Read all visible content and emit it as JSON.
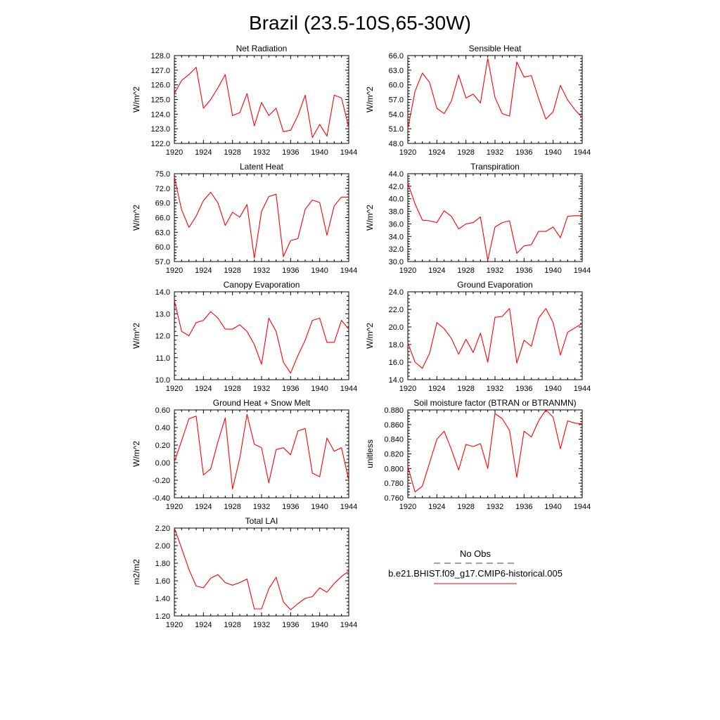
{
  "title": "Brazil (23.5-10S,65-30W)",
  "colors": {
    "model": "#ff0000",
    "obs": "#3b3b8f",
    "axis": "#000000"
  },
  "legend": {
    "obs_label": "No Obs",
    "model_label": "b.e21.BHIST.f09_g17.CMIP6-historical.005"
  },
  "chart_data": [
    {
      "type": "line",
      "title": "Net Radiation",
      "ylabel": "W/m^2",
      "ylim": [
        122.0,
        128.0
      ],
      "yticks": [
        "122.0",
        "123.0",
        "124.0",
        "125.0",
        "126.0",
        "127.0",
        "128.0"
      ],
      "xlim": [
        1920,
        1944
      ],
      "xticks": [
        "1920",
        "1924",
        "1928",
        "1932",
        "1936",
        "1940",
        "1944"
      ],
      "x": [
        1920,
        1921,
        1922,
        1923,
        1924,
        1925,
        1926,
        1927,
        1928,
        1929,
        1930,
        1931,
        1932,
        1933,
        1934,
        1935,
        1936,
        1937,
        1938,
        1939,
        1940,
        1941,
        1942,
        1943,
        1944
      ],
      "series": [
        {
          "values": [
            125.4,
            126.3,
            126.7,
            127.2,
            124.4,
            125.0,
            125.8,
            126.7,
            123.9,
            124.1,
            125.4,
            123.2,
            124.8,
            123.9,
            124.4,
            122.8,
            122.9,
            123.9,
            125.3,
            122.4,
            123.3,
            122.5,
            125.3,
            125.1,
            123.1
          ]
        }
      ]
    },
    {
      "type": "line",
      "title": "Sensible Heat",
      "ylabel": "W/m^2",
      "ylim": [
        48.0,
        66.0
      ],
      "yticks": [
        "48.0",
        "51.0",
        "54.0",
        "57.0",
        "60.0",
        "63.0",
        "66.0"
      ],
      "xlim": [
        1920,
        1944
      ],
      "xticks": [
        "1920",
        "1924",
        "1928",
        "1932",
        "1936",
        "1940",
        "1944"
      ],
      "x": [
        1920,
        1921,
        1922,
        1923,
        1924,
        1925,
        1926,
        1927,
        1928,
        1929,
        1930,
        1931,
        1932,
        1933,
        1934,
        1935,
        1936,
        1937,
        1938,
        1939,
        1940,
        1941,
        1942,
        1943,
        1944
      ],
      "series": [
        {
          "values": [
            51.0,
            58.7,
            62.4,
            60.5,
            55.2,
            54.1,
            56.7,
            62.0,
            57.3,
            58.1,
            56.3,
            65.4,
            57.4,
            54.1,
            53.6,
            64.7,
            61.6,
            61.9,
            57.2,
            53.0,
            54.5,
            59.9,
            56.9,
            54.9,
            53.3
          ]
        }
      ]
    },
    {
      "type": "line",
      "title": "Latent Heat",
      "ylabel": "W/m^2",
      "ylim": [
        57.0,
        75.0
      ],
      "yticks": [
        "57.0",
        "60.0",
        "63.0",
        "66.0",
        "69.0",
        "72.0",
        "75.0"
      ],
      "xlim": [
        1920,
        1944
      ],
      "xticks": [
        "1920",
        "1924",
        "1928",
        "1932",
        "1936",
        "1940",
        "1944"
      ],
      "x": [
        1920,
        1921,
        1922,
        1923,
        1924,
        1925,
        1926,
        1927,
        1928,
        1929,
        1930,
        1931,
        1932,
        1933,
        1934,
        1935,
        1936,
        1937,
        1938,
        1939,
        1940,
        1941,
        1942,
        1943,
        1944
      ],
      "series": [
        {
          "values": [
            74.3,
            67.6,
            64.0,
            66.3,
            69.5,
            71.2,
            69.0,
            64.4,
            67.1,
            66.1,
            68.7,
            57.7,
            67.3,
            70.3,
            70.8,
            58.0,
            61.3,
            61.7,
            67.7,
            69.6,
            69.1,
            62.4,
            68.4,
            70.2,
            70.2
          ]
        }
      ]
    },
    {
      "type": "line",
      "title": "Transpiration",
      "ylabel": "W/m^2",
      "ylim": [
        30.0,
        44.0
      ],
      "yticks": [
        "30.0",
        "32.0",
        "34.0",
        "36.0",
        "38.0",
        "40.0",
        "42.0",
        "44.0"
      ],
      "xlim": [
        1920,
        1944
      ],
      "xticks": [
        "1920",
        "1924",
        "1928",
        "1932",
        "1936",
        "1940",
        "1944"
      ],
      "x": [
        1920,
        1921,
        1922,
        1923,
        1924,
        1925,
        1926,
        1927,
        1928,
        1929,
        1930,
        1931,
        1932,
        1933,
        1934,
        1935,
        1936,
        1937,
        1938,
        1939,
        1940,
        1941,
        1942,
        1943,
        1944
      ],
      "series": [
        {
          "values": [
            42.5,
            39.2,
            36.6,
            36.5,
            36.2,
            38.1,
            37.2,
            35.2,
            36.0,
            36.2,
            37.1,
            30.2,
            35.5,
            36.2,
            36.5,
            31.3,
            32.5,
            32.7,
            34.8,
            34.8,
            35.5,
            33.8,
            37.2,
            37.3,
            37.3
          ]
        }
      ]
    },
    {
      "type": "line",
      "title": "Canopy Evaporation",
      "ylabel": "W/m^2",
      "ylim": [
        10.0,
        14.0
      ],
      "yticks": [
        "10.0",
        "11.0",
        "12.0",
        "13.0",
        "14.0"
      ],
      "xlim": [
        1920,
        1944
      ],
      "xticks": [
        "1920",
        "1924",
        "1928",
        "1932",
        "1936",
        "1940",
        "1944"
      ],
      "x": [
        1920,
        1921,
        1922,
        1923,
        1924,
        1925,
        1926,
        1927,
        1928,
        1929,
        1930,
        1931,
        1932,
        1933,
        1934,
        1935,
        1936,
        1937,
        1938,
        1939,
        1940,
        1941,
        1942,
        1943,
        1944
      ],
      "series": [
        {
          "values": [
            13.6,
            12.2,
            12.0,
            12.6,
            12.7,
            13.1,
            12.8,
            12.3,
            12.3,
            12.5,
            12.2,
            11.6,
            10.7,
            12.8,
            12.2,
            10.8,
            10.3,
            11.1,
            11.8,
            12.7,
            12.8,
            11.7,
            11.7,
            12.7,
            12.3
          ]
        }
      ]
    },
    {
      "type": "line",
      "title": "Ground Evaporation",
      "ylabel": "W/m^2",
      "ylim": [
        14.0,
        24.0
      ],
      "yticks": [
        "14.0",
        "16.0",
        "18.0",
        "20.0",
        "22.0",
        "24.0"
      ],
      "xlim": [
        1920,
        1944
      ],
      "xticks": [
        "1920",
        "1924",
        "1928",
        "1932",
        "1936",
        "1940",
        "1944"
      ],
      "x": [
        1920,
        1921,
        1922,
        1923,
        1924,
        1925,
        1926,
        1927,
        1928,
        1929,
        1930,
        1931,
        1932,
        1933,
        1934,
        1935,
        1936,
        1937,
        1938,
        1939,
        1940,
        1941,
        1942,
        1943,
        1944
      ],
      "series": [
        {
          "values": [
            18.2,
            16.0,
            15.3,
            17.0,
            20.5,
            19.8,
            18.7,
            16.9,
            18.6,
            17.1,
            19.3,
            16.0,
            21.1,
            21.2,
            22.1,
            15.9,
            18.5,
            17.8,
            21.0,
            22.1,
            20.5,
            16.8,
            19.4,
            19.9,
            20.4
          ]
        }
      ]
    },
    {
      "type": "line",
      "title": "Ground Heat + Snow Melt",
      "ylabel": "W/m^2",
      "ylim": [
        -0.4,
        0.6
      ],
      "yticks": [
        "-0.40",
        "-0.20",
        "0.00",
        "0.20",
        "0.40",
        "0.60"
      ],
      "xlim": [
        1920,
        1944
      ],
      "xticks": [
        "1920",
        "1924",
        "1928",
        "1932",
        "1936",
        "1940",
        "1944"
      ],
      "x": [
        1920,
        1921,
        1922,
        1923,
        1924,
        1925,
        1926,
        1927,
        1928,
        1929,
        1930,
        1931,
        1932,
        1933,
        1934,
        1935,
        1936,
        1937,
        1938,
        1939,
        1940,
        1941,
        1942,
        1943,
        1944
      ],
      "series": [
        {
          "values": [
            0.01,
            0.25,
            0.5,
            0.53,
            -0.14,
            -0.07,
            0.24,
            0.51,
            -0.3,
            0.05,
            0.55,
            0.21,
            0.17,
            -0.23,
            0.15,
            0.17,
            0.09,
            0.36,
            0.39,
            -0.12,
            -0.16,
            0.28,
            0.13,
            0.17,
            -0.2
          ]
        }
      ]
    },
    {
      "type": "line",
      "title": "Soil moisture factor (BTRAN or BTRANMN)",
      "ylabel": "unitless",
      "ylim": [
        0.76,
        0.88
      ],
      "yticks": [
        "0.760",
        "0.780",
        "0.800",
        "0.820",
        "0.840",
        "0.860",
        "0.880"
      ],
      "xlim": [
        1920,
        1944
      ],
      "xticks": [
        "1920",
        "1924",
        "1928",
        "1932",
        "1936",
        "1940",
        "1944"
      ],
      "x": [
        1920,
        1921,
        1922,
        1923,
        1924,
        1925,
        1926,
        1927,
        1928,
        1929,
        1930,
        1931,
        1932,
        1933,
        1934,
        1935,
        1936,
        1937,
        1938,
        1939,
        1940,
        1941,
        1942,
        1943,
        1944
      ],
      "series": [
        {
          "values": [
            0.803,
            0.768,
            0.776,
            0.808,
            0.84,
            0.851,
            0.826,
            0.798,
            0.833,
            0.83,
            0.834,
            0.8,
            0.875,
            0.868,
            0.852,
            0.788,
            0.851,
            0.843,
            0.865,
            0.88,
            0.87,
            0.827,
            0.865,
            0.862,
            0.861
          ]
        }
      ]
    },
    {
      "type": "line",
      "title": "Total LAI",
      "ylabel": "m2/m2",
      "ylim": [
        1.2,
        2.2
      ],
      "yticks": [
        "1.20",
        "1.40",
        "1.60",
        "1.80",
        "2.00",
        "2.20"
      ],
      "xlim": [
        1920,
        1944
      ],
      "xticks": [
        "1920",
        "1924",
        "1928",
        "1932",
        "1936",
        "1940",
        "1944"
      ],
      "x": [
        1920,
        1921,
        1922,
        1923,
        1924,
        1925,
        1926,
        1927,
        1928,
        1929,
        1930,
        1931,
        1932,
        1933,
        1934,
        1935,
        1936,
        1937,
        1938,
        1939,
        1940,
        1941,
        1942,
        1943,
        1944
      ],
      "series": [
        {
          "values": [
            2.2,
            1.97,
            1.73,
            1.54,
            1.52,
            1.63,
            1.67,
            1.58,
            1.55,
            1.58,
            1.62,
            1.28,
            1.28,
            1.51,
            1.64,
            1.36,
            1.27,
            1.34,
            1.4,
            1.42,
            1.52,
            1.47,
            1.57,
            1.65,
            1.71
          ]
        }
      ]
    }
  ]
}
